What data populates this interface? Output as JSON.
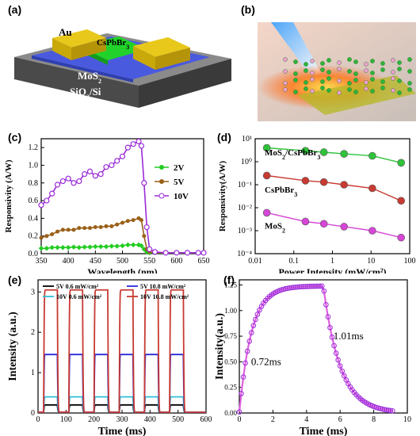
{
  "panels": {
    "a": "(a)",
    "b": "(b)",
    "c": "(c)",
    "d": "(d)",
    "e": "(e)",
    "f": "(f)"
  },
  "device_labels": {
    "au": "Au",
    "cspbbr3": "CsPbBr3",
    "mos2": "MoS2",
    "substrate": "SiO2/Si"
  },
  "colors": {
    "green": "#22cc22",
    "brown": "#9a6018",
    "purple": "#9b2bd9",
    "red": "#c83a32",
    "pink": "#d646d6",
    "lime": "#2fc33a",
    "black": "#000000",
    "blue": "#2a2ad8",
    "cyan": "#30c0d8"
  },
  "chart_data": [
    {
      "id": "c",
      "type": "line",
      "xlabel": "Wavelength (nm)",
      "ylabel": "Responsivity (A/W)",
      "xlim": [
        350,
        650
      ],
      "ylim": [
        0,
        1.3
      ],
      "xticks": [
        350,
        400,
        450,
        500,
        550,
        600,
        650
      ],
      "yticks": [
        0.0,
        0.2,
        0.4,
        0.6,
        0.8,
        1.0,
        1.2
      ],
      "legend_position": "right",
      "series": [
        {
          "name": "2V",
          "color": "#22cc22",
          "x": [
            350,
            360,
            370,
            380,
            390,
            400,
            410,
            420,
            430,
            440,
            450,
            460,
            470,
            480,
            490,
            500,
            510,
            520,
            530,
            535,
            540,
            545,
            550,
            560,
            580,
            600,
            620,
            640,
            650
          ],
          "y": [
            0.06,
            0.06,
            0.07,
            0.07,
            0.07,
            0.07,
            0.075,
            0.07,
            0.075,
            0.075,
            0.08,
            0.08,
            0.08,
            0.085,
            0.085,
            0.09,
            0.1,
            0.1,
            0.1,
            0.09,
            0.05,
            0.02,
            0.01,
            0.01,
            0.01,
            0.01,
            0.01,
            0.01,
            0.01
          ]
        },
        {
          "name": "5V",
          "color": "#9a6018",
          "x": [
            350,
            360,
            370,
            380,
            390,
            400,
            410,
            420,
            430,
            440,
            450,
            460,
            470,
            480,
            490,
            500,
            510,
            520,
            530,
            535,
            540,
            545,
            550,
            560,
            580,
            600,
            620,
            640,
            650
          ],
          "y": [
            0.18,
            0.2,
            0.22,
            0.25,
            0.27,
            0.27,
            0.27,
            0.29,
            0.29,
            0.29,
            0.3,
            0.3,
            0.31,
            0.31,
            0.33,
            0.35,
            0.37,
            0.38,
            0.4,
            0.38,
            0.2,
            0.05,
            0.02,
            0.01,
            0.01,
            0.01,
            0.01,
            0.01,
            0.01
          ]
        },
        {
          "name": "10V",
          "color": "#9b2bd9",
          "x": [
            350,
            360,
            370,
            380,
            390,
            400,
            410,
            420,
            430,
            440,
            450,
            460,
            470,
            480,
            490,
            500,
            510,
            520,
            530,
            535,
            540,
            545,
            550,
            560,
            580,
            600,
            620,
            640,
            650
          ],
          "y": [
            0.55,
            0.6,
            0.68,
            0.78,
            0.82,
            0.85,
            0.8,
            0.82,
            0.9,
            0.93,
            0.88,
            0.9,
            0.98,
            1.0,
            1.05,
            1.1,
            1.2,
            1.24,
            1.27,
            1.22,
            0.8,
            0.3,
            0.05,
            0.02,
            0.01,
            0.01,
            0.01,
            0.01,
            0.01
          ]
        }
      ]
    },
    {
      "id": "d",
      "type": "line",
      "xlabel": "Power Intensity (mW/cm²)",
      "ylabel": "Responsivity(A/W)",
      "xscale": "log",
      "yscale": "log",
      "xlim": [
        0.01,
        100
      ],
      "ylim": [
        0.0001,
        10
      ],
      "xtick_labels": [
        "0.01",
        "0.1",
        "1",
        "10",
        "100"
      ],
      "ytick_labels": [
        "10⁻⁴",
        "10⁻³",
        "10⁻²",
        "10⁻¹",
        "10⁰",
        "10¹"
      ],
      "series": [
        {
          "name": "MoS2/CsPbBr3",
          "color": "#2fc33a",
          "x": [
            0.02,
            0.2,
            0.6,
            2.0,
            10.8,
            60
          ],
          "y": [
            4.0,
            3.0,
            2.6,
            2.2,
            1.8,
            0.9
          ]
        },
        {
          "name": "CsPbBr3",
          "color": "#c83a32",
          "x": [
            0.02,
            0.2,
            0.6,
            2.0,
            10.8,
            60
          ],
          "y": [
            0.25,
            0.15,
            0.13,
            0.1,
            0.07,
            0.02
          ]
        },
        {
          "name": "MoS2",
          "color": "#d646d6",
          "x": [
            0.02,
            0.2,
            0.6,
            2.0,
            10.8,
            60
          ],
          "y": [
            0.006,
            0.0025,
            0.002,
            0.0015,
            0.001,
            0.0005
          ]
        }
      ]
    },
    {
      "id": "e",
      "type": "line",
      "xlabel": "Time (ms)",
      "ylabel": "Intensity (a.u.)",
      "xlim": [
        0,
        600
      ],
      "ylim": [
        0,
        3.3
      ],
      "xticks": [
        0,
        100,
        200,
        300,
        400,
        500,
        600
      ],
      "yticks": [
        0,
        1,
        2,
        3
      ],
      "pulse_on": [
        [
          20,
          70
        ],
        [
          110,
          160
        ],
        [
          200,
          250
        ],
        [
          290,
          340
        ],
        [
          380,
          430
        ],
        [
          470,
          520
        ]
      ],
      "series": [
        {
          "name": "5V   0.6 mW/cm²",
          "color": "#000000",
          "on_value": 0.2
        },
        {
          "name": "10V   0.6 mW/cm²",
          "color": "#30c0d8",
          "on_value": 0.4
        },
        {
          "name": "5V   10.8 mW/cm²",
          "color": "#2a2ad8",
          "on_value": 1.45
        },
        {
          "name": "10V   10.8 mW/cm²",
          "color": "#c83a32",
          "on_value": 3.05
        }
      ]
    },
    {
      "id": "f",
      "type": "line",
      "xlabel": "Time (ms)",
      "ylabel": "Intensity(a.u.)",
      "xlim": [
        0,
        10
      ],
      "ylim": [
        0,
        1.3
      ],
      "xticks": [
        0,
        2,
        4,
        6,
        8,
        10
      ],
      "yticks": [
        0.0,
        0.25,
        0.5,
        0.75,
        1.0,
        1.25
      ],
      "annotations": [
        "0.72ms",
        "1.01ms"
      ],
      "rise_time_ms": 0.72,
      "decay_time_ms": 1.01,
      "on_start": 0.0,
      "off_start": 5.0,
      "plateau": 1.24,
      "series": [
        {
          "name": "",
          "color": "#9b2bd9"
        }
      ]
    }
  ]
}
